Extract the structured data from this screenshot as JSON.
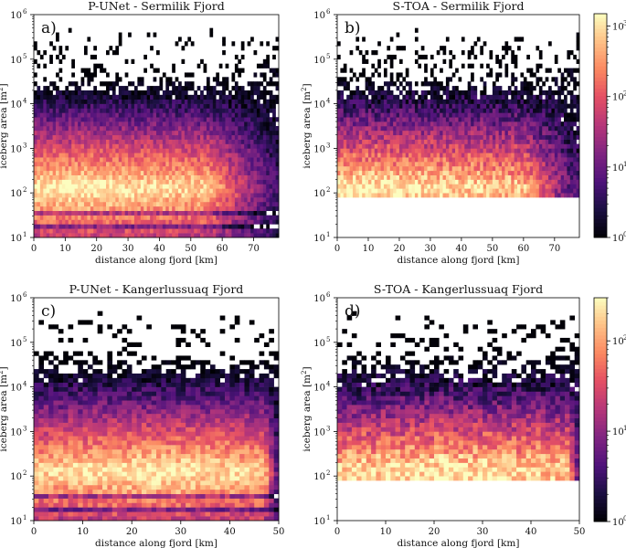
{
  "figure": {
    "colormap": "magma"
  },
  "chart_data": [
    {
      "id": "a",
      "type": "heatmap",
      "tag": "a)",
      "title": "P-UNet - Sermilik Fjord",
      "xlabel": "distance along fjord [km]",
      "ylabel": "iceberg area [m",
      "ylabel_sup": "2",
      "ylabel_close": "]",
      "xlim": [
        0,
        78
      ],
      "ylim_log10": [
        1,
        6
      ],
      "xticks": [
        0,
        10,
        20,
        30,
        40,
        50,
        60,
        70
      ],
      "yticks": [
        {
          "base": "10",
          "exp": "1"
        },
        {
          "base": "10",
          "exp": "2"
        },
        {
          "base": "10",
          "exp": "3"
        },
        {
          "base": "10",
          "exp": "4"
        },
        {
          "base": "10",
          "exp": "5"
        },
        {
          "base": "10",
          "exp": "6"
        }
      ],
      "min_area_log10": 1.0,
      "peak_count": 1500,
      "peak_distance_km": 15,
      "decline_start_km": 55,
      "colorbar": false
    },
    {
      "id": "b",
      "type": "heatmap",
      "tag": "b)",
      "title": "S-TOA - Sermilik Fjord",
      "xlabel": "distance along fjord [km]",
      "ylabel": "iceberg area [m",
      "ylabel_sup": "2",
      "ylabel_close": "]",
      "xlim": [
        0,
        78
      ],
      "ylim_log10": [
        1,
        6
      ],
      "xticks": [
        0,
        10,
        20,
        30,
        40,
        50,
        60,
        70
      ],
      "yticks": [
        {
          "base": "10",
          "exp": "1"
        },
        {
          "base": "10",
          "exp": "2"
        },
        {
          "base": "10",
          "exp": "3"
        },
        {
          "base": "10",
          "exp": "4"
        },
        {
          "base": "10",
          "exp": "5"
        },
        {
          "base": "10",
          "exp": "6"
        }
      ],
      "min_area_log10": 1.9,
      "peak_count": 300,
      "peak_distance_km": 10,
      "decline_start_km": 60,
      "colorbar": true,
      "colorbar_range": [
        1,
        1500
      ],
      "colorbar_ticks": [
        {
          "base": "10",
          "exp": "0"
        },
        {
          "base": "10",
          "exp": "1"
        },
        {
          "base": "10",
          "exp": "2"
        },
        {
          "base": "10",
          "exp": "3"
        }
      ]
    },
    {
      "id": "c",
      "type": "heatmap",
      "tag": "c)",
      "title": "P-UNet - Kangerlussuaq Fjord",
      "xlabel": "distance along fjord [km]",
      "ylabel": "iceberg area [m",
      "ylabel_sup": "2",
      "ylabel_close": "]",
      "xlim": [
        0,
        50
      ],
      "ylim_log10": [
        1,
        6
      ],
      "xticks": [
        0,
        10,
        20,
        30,
        40,
        50
      ],
      "yticks": [
        {
          "base": "10",
          "exp": "1"
        },
        {
          "base": "10",
          "exp": "2"
        },
        {
          "base": "10",
          "exp": "3"
        },
        {
          "base": "10",
          "exp": "4"
        },
        {
          "base": "10",
          "exp": "5"
        },
        {
          "base": "10",
          "exp": "6"
        }
      ],
      "min_area_log10": 1.0,
      "peak_count": 1000,
      "peak_distance_km": 25,
      "decline_start_km": 47,
      "colorbar": false
    },
    {
      "id": "d",
      "type": "heatmap",
      "tag": "d)",
      "title": "S-TOA - Kangerlussuaq Fjord",
      "xlabel": "distance along fjord [km]",
      "ylabel": "iceberg area [m",
      "ylabel_sup": "2",
      "ylabel_close": "]",
      "xlim": [
        0,
        50
      ],
      "ylim_log10": [
        1,
        6
      ],
      "xticks": [
        0,
        10,
        20,
        30,
        40,
        50
      ],
      "yticks": [
        {
          "base": "10",
          "exp": "1"
        },
        {
          "base": "10",
          "exp": "2"
        },
        {
          "base": "10",
          "exp": "3"
        },
        {
          "base": "10",
          "exp": "4"
        },
        {
          "base": "10",
          "exp": "5"
        },
        {
          "base": "10",
          "exp": "6"
        }
      ],
      "min_area_log10": 1.9,
      "peak_count": 200,
      "peak_distance_km": 20,
      "decline_start_km": 48,
      "colorbar": true,
      "colorbar_range": [
        1,
        300
      ],
      "colorbar_ticks": [
        {
          "base": "10",
          "exp": "0"
        },
        {
          "base": "10",
          "exp": "1"
        },
        {
          "base": "10",
          "exp": "2"
        }
      ]
    }
  ]
}
